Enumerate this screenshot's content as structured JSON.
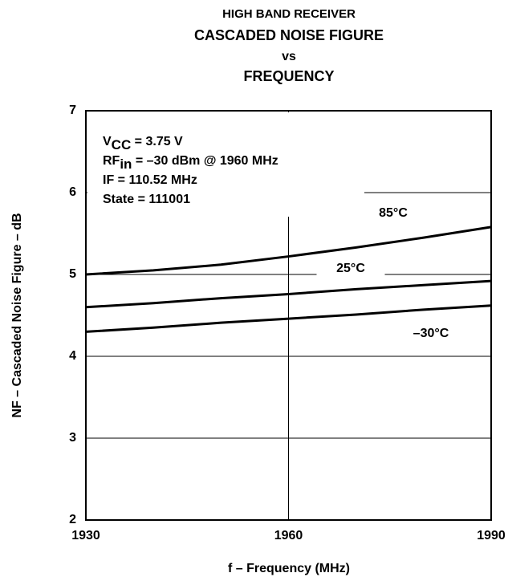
{
  "chart_data": {
    "type": "line",
    "title": [
      "HIGH BAND RECEIVER",
      "CASCADED NOISE FIGURE",
      "vs",
      "FREQUENCY"
    ],
    "x_label": "f – Frequency (MHz)",
    "y_label": "NF – Cascaded Noise Figure – dB",
    "annotations": [
      [
        "V",
        "CC",
        " = 3.75 V"
      ],
      [
        "RF",
        "in",
        " = –30 dBm @ 1960 MHz"
      ],
      [
        "IF = 110.52 MHz"
      ],
      [
        "State = 111001"
      ]
    ],
    "x": [
      1930,
      1940,
      1950,
      1960,
      1970,
      1980,
      1990
    ],
    "series": [
      {
        "name": "85°C",
        "color": "#000000",
        "values": [
          5.0,
          5.05,
          5.12,
          5.22,
          5.33,
          5.45,
          5.58
        ]
      },
      {
        "name": "25°C",
        "color": "#000000",
        "values": [
          4.6,
          4.65,
          4.71,
          4.76,
          4.82,
          4.87,
          4.92
        ]
      },
      {
        "name": "–30°C",
        "color": "#000000",
        "values": [
          4.3,
          4.35,
          4.41,
          4.46,
          4.51,
          4.57,
          4.62
        ]
      }
    ],
    "xlim": [
      1930,
      1990
    ],
    "xticks": [
      1930,
      1960,
      1990
    ],
    "ylim": [
      2,
      7
    ],
    "yticks": [
      2,
      3,
      4,
      5,
      6,
      7
    ],
    "grid": true
  }
}
